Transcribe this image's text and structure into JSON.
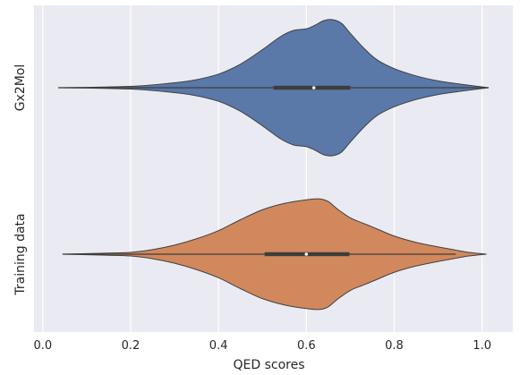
{
  "chart_data": {
    "type": "violin",
    "orientation": "horizontal",
    "title": "",
    "xlabel": "QED scores",
    "ylabel": "",
    "xlim": [
      -0.02,
      1.07
    ],
    "xticks": [
      "0.0",
      "0.2",
      "0.4",
      "0.6",
      "0.8",
      "1.0"
    ],
    "xtick_values": [
      0.0,
      0.2,
      0.4,
      0.6,
      0.8,
      1.0
    ],
    "grid": true,
    "background": "#eaeaf2",
    "series": [
      {
        "name": "Gx2Mol",
        "color": "#5a78a8",
        "edge_color": "#404040",
        "x_min": 0.035,
        "x_max": 1.015,
        "quartiles": [
          0.525,
          0.617,
          0.7
        ],
        "median": 0.617,
        "whiskers": [
          0.035,
          1.015
        ],
        "density_profile": [
          [
            0.035,
            0.0
          ],
          [
            0.1,
            0.004
          ],
          [
            0.16,
            0.01
          ],
          [
            0.22,
            0.02
          ],
          [
            0.28,
            0.045
          ],
          [
            0.34,
            0.08
          ],
          [
            0.4,
            0.15
          ],
          [
            0.45,
            0.26
          ],
          [
            0.5,
            0.42
          ],
          [
            0.54,
            0.56
          ],
          [
            0.57,
            0.63
          ],
          [
            0.6,
            0.65
          ],
          [
            0.62,
            0.69
          ],
          [
            0.64,
            0.74
          ],
          [
            0.66,
            0.75
          ],
          [
            0.68,
            0.71
          ],
          [
            0.7,
            0.6
          ],
          [
            0.73,
            0.44
          ],
          [
            0.76,
            0.31
          ],
          [
            0.8,
            0.21
          ],
          [
            0.85,
            0.13
          ],
          [
            0.9,
            0.075
          ],
          [
            0.95,
            0.04
          ],
          [
            0.99,
            0.015
          ],
          [
            1.015,
            0.0
          ]
        ]
      },
      {
        "name": "Training data",
        "color": "#d1885c",
        "edge_color": "#404040",
        "x_min": 0.045,
        "x_max": 1.01,
        "quartiles": [
          0.505,
          0.6,
          0.698
        ],
        "median": 0.6,
        "whiskers": [
          0.045,
          0.94
        ],
        "density_profile": [
          [
            0.045,
            0.0
          ],
          [
            0.1,
            0.006
          ],
          [
            0.15,
            0.012
          ],
          [
            0.2,
            0.02
          ],
          [
            0.25,
            0.05
          ],
          [
            0.3,
            0.1
          ],
          [
            0.35,
            0.17
          ],
          [
            0.4,
            0.26
          ],
          [
            0.45,
            0.38
          ],
          [
            0.5,
            0.49
          ],
          [
            0.55,
            0.56
          ],
          [
            0.6,
            0.6
          ],
          [
            0.63,
            0.61
          ],
          [
            0.65,
            0.58
          ],
          [
            0.67,
            0.5
          ],
          [
            0.7,
            0.4
          ],
          [
            0.73,
            0.34
          ],
          [
            0.76,
            0.28
          ],
          [
            0.8,
            0.2
          ],
          [
            0.85,
            0.13
          ],
          [
            0.9,
            0.08
          ],
          [
            0.94,
            0.045
          ],
          [
            0.97,
            0.02
          ],
          [
            1.01,
            0.0
          ]
        ]
      }
    ]
  }
}
